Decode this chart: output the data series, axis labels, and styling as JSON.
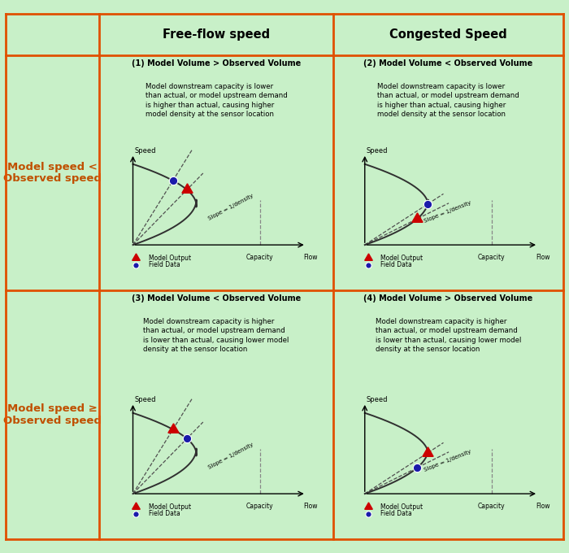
{
  "bg_color": "#c8f0c8",
  "border_color": "#e05000",
  "header_text_color": "#000000",
  "row_label_color": "#c05000",
  "col_headers": [
    "Free-flow speed",
    "Congested Speed"
  ],
  "row_labels": [
    "Model speed <\nObserved speed",
    "Model speed ≥\nObserved speed"
  ],
  "cell_titles": [
    [
      "(1) Model Volume > Observed Volume",
      "(2) Model Volume < Observed Volume"
    ],
    [
      "(3) Model Volume < Observed Volume",
      "(4) Model Volume > Observed Volume"
    ]
  ],
  "cell_texts": [
    [
      "Model downstream capacity is lower\nthan actual, or model upstream demand\nis higher than actual, causing higher\nmodel density at the sensor location",
      "Model downstream capacity is lower\nthan actual, or model upstream demand\nis higher than actual, causing higher\nmodel density at the sensor location"
    ],
    [
      "Model downstream capacity is higher\nthan actual, or model upstream demand\nis lower than actual, causing lower model\ndensity at the sensor location",
      "Model downstream capacity is higher\nthan actual, or model upstream demand\nis lower than actual, causing lower model\ndensity at the sensor location"
    ]
  ],
  "curve_color": "#303030",
  "dashed_color": "#505050",
  "arrow_color": "#cc0000",
  "dot_color": "#1a1aaa",
  "cap_line_color": "#888888"
}
